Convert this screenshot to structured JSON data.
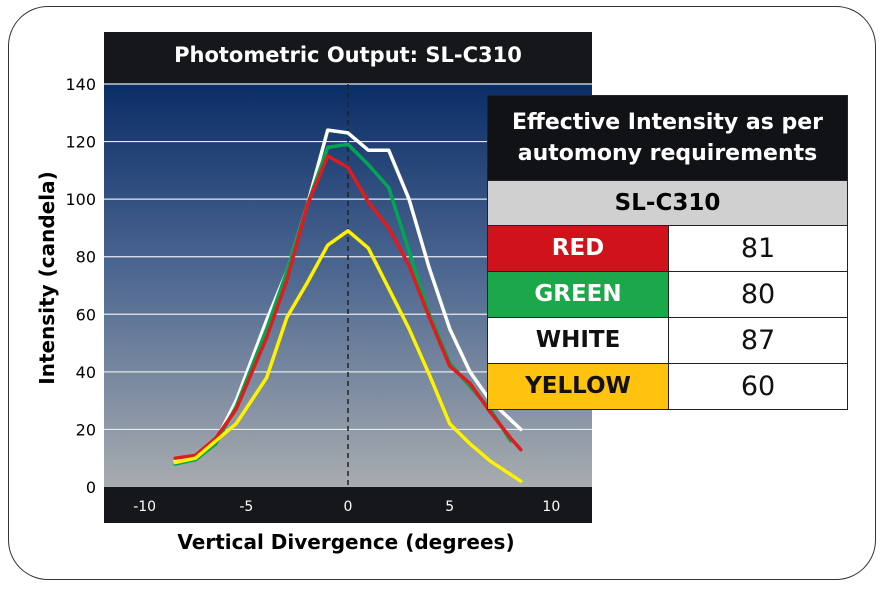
{
  "chart_data": {
    "type": "line",
    "title": "Photometric Output: SL-C310",
    "xlabel": "Vertical Divergence (degrees)",
    "ylabel": "Intensity (candela)",
    "xlim": [
      -12,
      12
    ],
    "ylim": [
      0,
      140
    ],
    "xticks": [
      "-10",
      "-5",
      "0",
      "5",
      "10"
    ],
    "yticks": [
      "0",
      "20",
      "40",
      "60",
      "80",
      "100",
      "120",
      "140"
    ],
    "grid": true,
    "series": [
      {
        "name": "WHITE",
        "color": "#ffffff",
        "x": [
          -8.5,
          -7.5,
          -6.5,
          -5.5,
          -4.0,
          -3.0,
          -2.0,
          -1.0,
          0,
          1.0,
          2.0,
          3.0,
          4.0,
          5.0,
          6.0,
          7.0,
          8.5
        ],
        "y": [
          9,
          10,
          16,
          30,
          58,
          75,
          98,
          124,
          123,
          117,
          117,
          100,
          76,
          55,
          40,
          30,
          20
        ]
      },
      {
        "name": "GREEN",
        "color": "#00a651",
        "x": [
          -8.5,
          -7.5,
          -6.5,
          -5.5,
          -4.0,
          -3.0,
          -2.0,
          -1.0,
          0,
          1.0,
          2.0,
          3.0,
          4.0,
          5.0,
          6.0,
          7.0,
          8.0
        ],
        "y": [
          8,
          9.5,
          15,
          28,
          55,
          75,
          98,
          118,
          119,
          112,
          104,
          82,
          60,
          43,
          35,
          27,
          16
        ]
      },
      {
        "name": "RED",
        "color": "#e01b1b",
        "x": [
          -8.5,
          -7.5,
          -6.5,
          -5.5,
          -4.0,
          -3.0,
          -2.0,
          -1.0,
          0,
          1.0,
          2.0,
          3.0,
          4.0,
          5.0,
          6.0,
          7.0,
          8.0,
          8.5
        ],
        "y": [
          10,
          11,
          17,
          27,
          52,
          72,
          98,
          115,
          111,
          99,
          90,
          77,
          59,
          42,
          36,
          26,
          17,
          13
        ]
      },
      {
        "name": "YELLOW",
        "color": "#fff200",
        "x": [
          -8.5,
          -7.5,
          -6.5,
          -5.5,
          -4.0,
          -3.0,
          -2.0,
          -1.0,
          0,
          1.0,
          2.0,
          3.0,
          4.0,
          5.0,
          6.0,
          7.0,
          8.5
        ],
        "y": [
          8.5,
          10,
          16,
          22,
          38,
          59,
          71,
          84,
          89,
          83,
          69,
          55,
          39,
          22,
          15,
          9,
          2
        ]
      }
    ]
  },
  "table": {
    "header_line1": "Effective Intensity as per",
    "header_line2": "automony requirements",
    "model": "SL-C310",
    "rows": [
      {
        "label": "RED",
        "value": "81",
        "bg": "#d0121b",
        "fg": "#ffffff"
      },
      {
        "label": "GREEN",
        "value": "80",
        "bg": "#1aa84a",
        "fg": "#ffffff"
      },
      {
        "label": "WHITE",
        "value": "87",
        "bg": "#ffffff",
        "fg": "#111111"
      },
      {
        "label": "YELLOW",
        "value": "60",
        "bg": "#ffc20e",
        "fg": "#111111"
      }
    ]
  }
}
